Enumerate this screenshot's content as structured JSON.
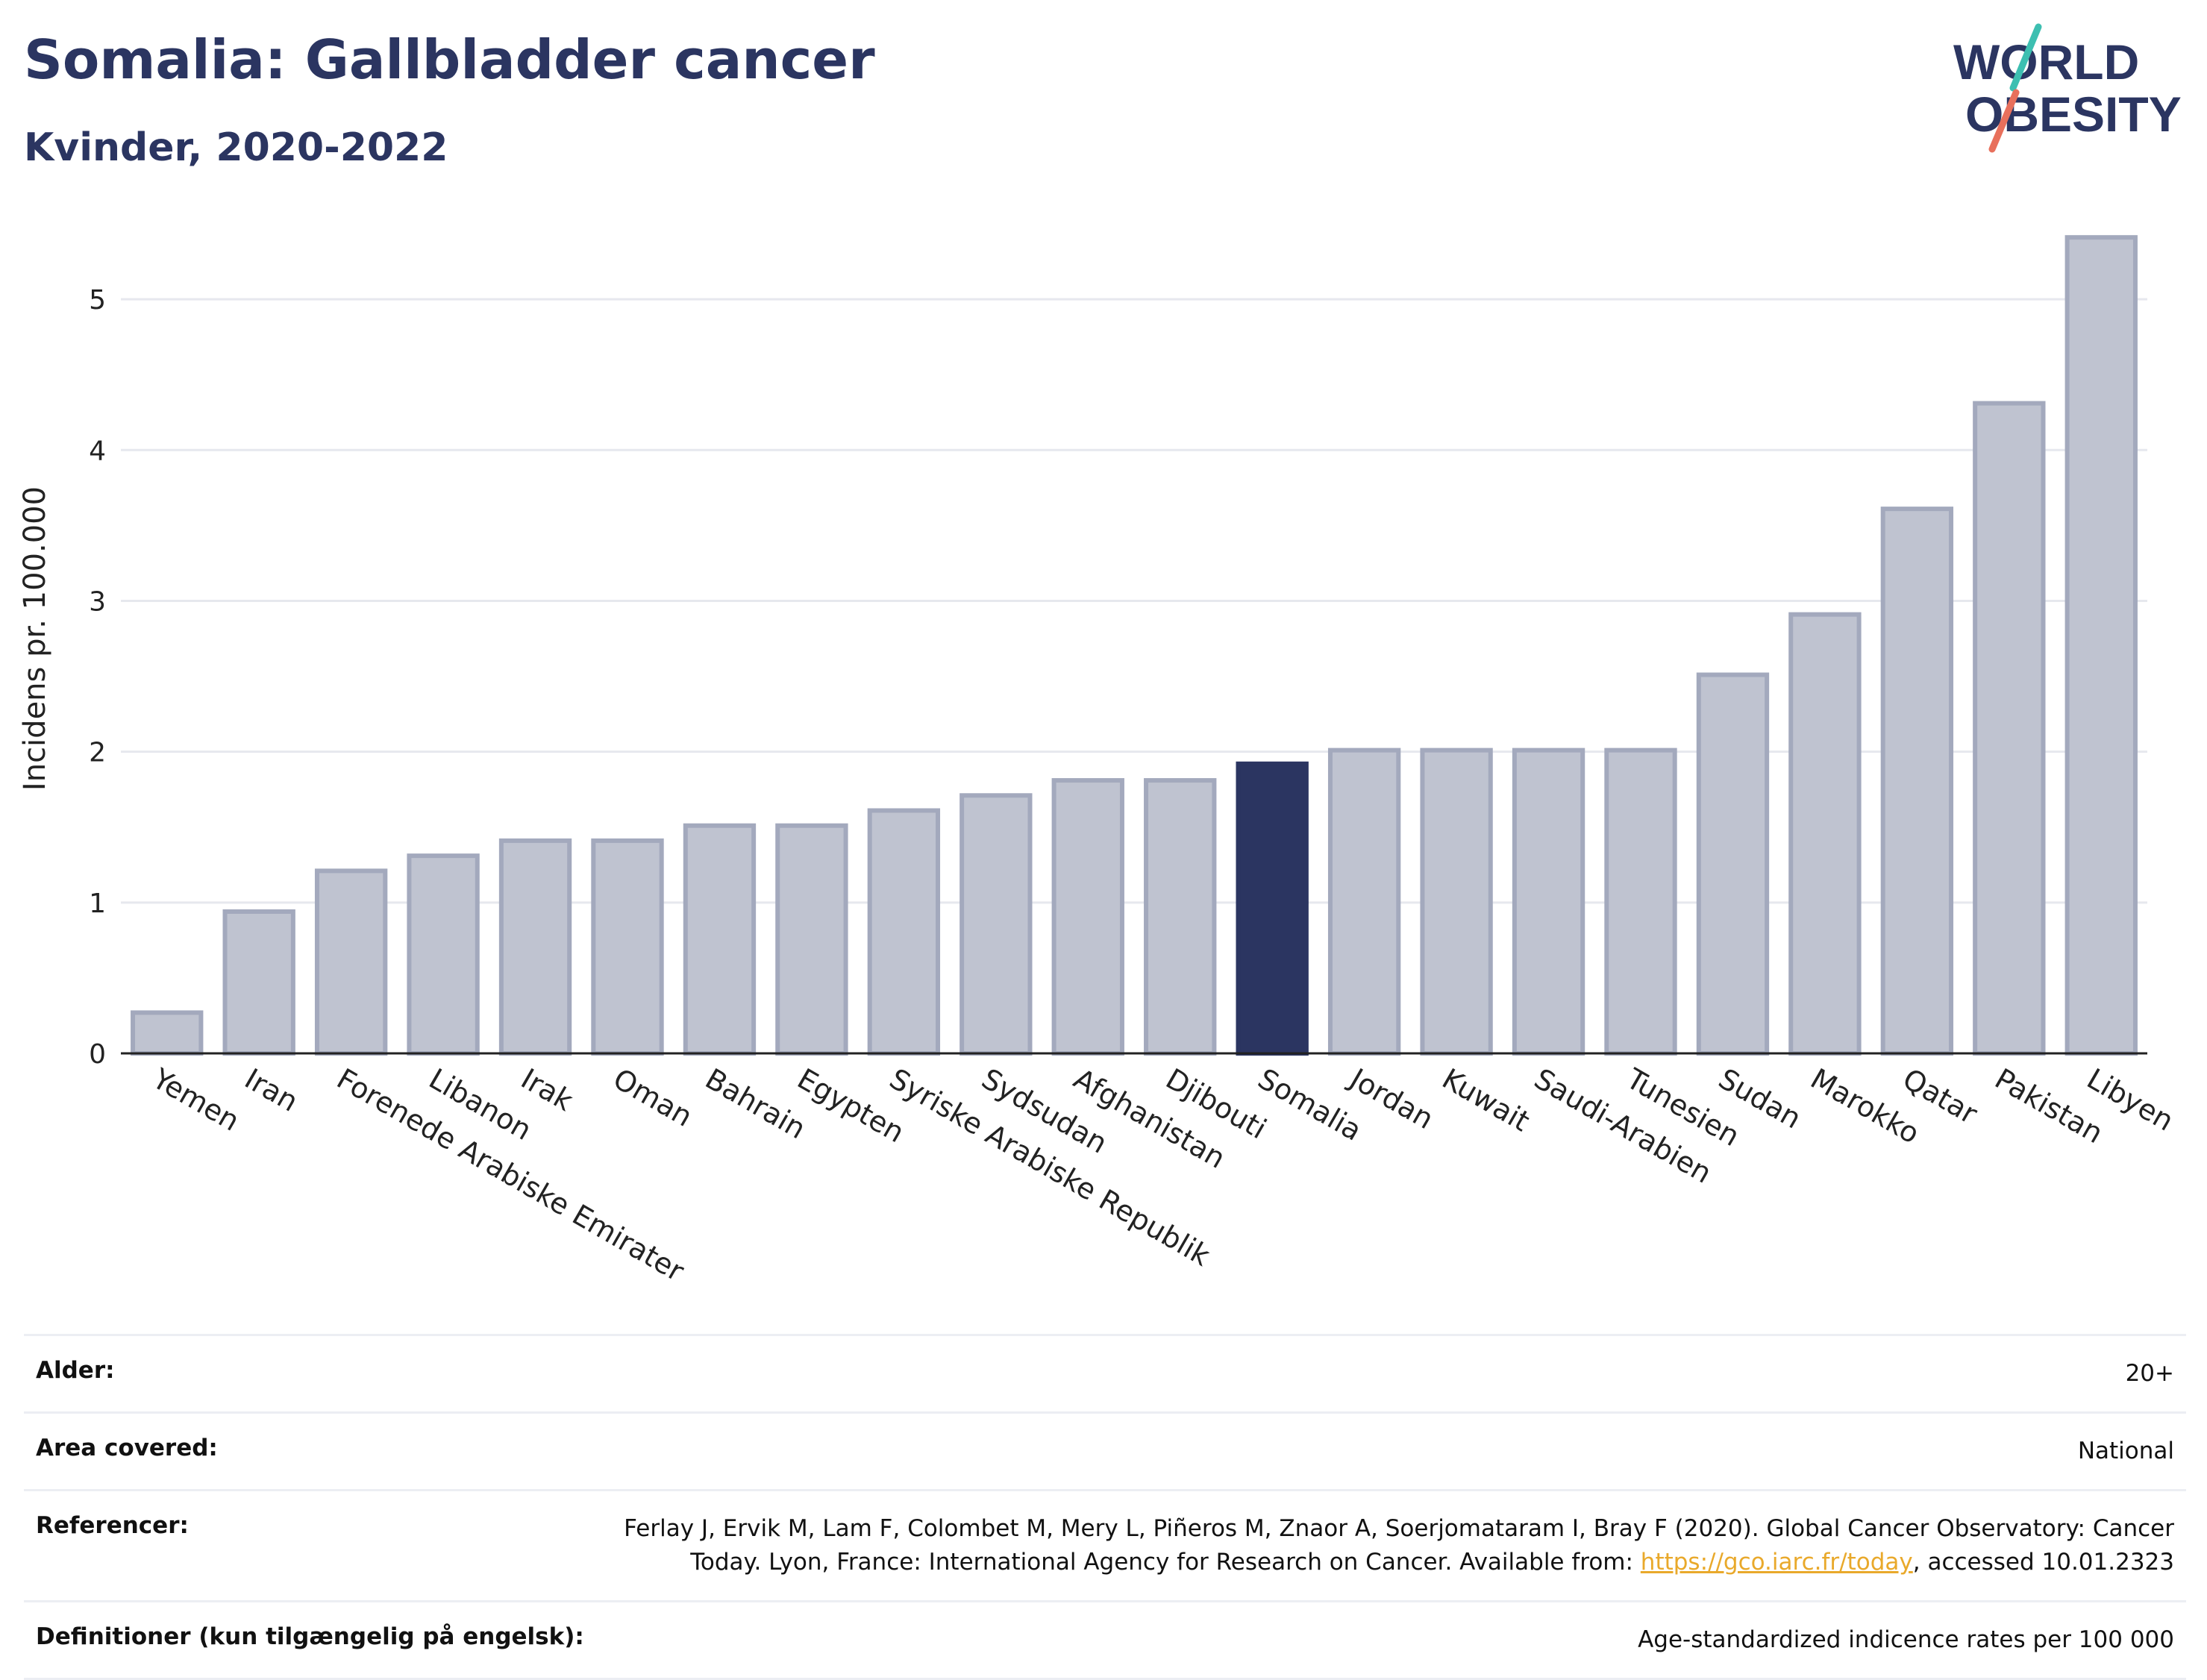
{
  "title": "Somalia: Gallbladder cancer",
  "subtitle": "Kvinder, 2020-2022",
  "logo": {
    "line1": "WORLD",
    "line2": "OBESITY"
  },
  "colors": {
    "highlight": "#2b3561",
    "bar_fill": "#bfc3d0",
    "bar_stroke": "#a3a9bd",
    "logo_navy": "#2b3561",
    "logo_teal": "#3dbfb1",
    "logo_coral": "#e8705c",
    "link": "#e9a92b"
  },
  "chart_data": {
    "type": "bar",
    "title": "Somalia: Gallbladder cancer",
    "ylabel": "Incidens pr. 100.000",
    "xlabel": "",
    "ylim": [
      0,
      5.5
    ],
    "yticks": [
      0,
      1,
      2,
      3,
      4,
      5
    ],
    "grid": true,
    "highlight": "Somalia",
    "categories": [
      "Yemen",
      "Iran",
      "Forenede Arabiske Emirater",
      "Libanon",
      "Irak",
      "Oman",
      "Bahrain",
      "Egypten",
      "Syriske Arabiske Republik",
      "Sydsudan",
      "Afghanistan",
      "Djibouti",
      "Somalia",
      "Jordan",
      "Kuwait",
      "Saudi-Arabien",
      "Tunesien",
      "Sudan",
      "Marokko",
      "Qatar",
      "Pakistan",
      "Libyen"
    ],
    "values": [
      0.27,
      0.94,
      1.21,
      1.31,
      1.41,
      1.41,
      1.51,
      1.51,
      1.61,
      1.71,
      1.81,
      1.81,
      1.92,
      2.01,
      2.01,
      2.01,
      2.01,
      2.51,
      2.91,
      3.61,
      4.31,
      5.41
    ]
  },
  "info": [
    {
      "label": "Alder:",
      "value": "20+"
    },
    {
      "label": "Area covered:",
      "value": "National"
    },
    {
      "label": "Referencer:",
      "value_before": "Ferlay J, Ervik M, Lam F, Colombet M, Mery L, Piñeros M, Znaor A, Soerjomataram I, Bray F (2020). Global Cancer Observatory: Cancer Today. Lyon, France: International Agency for Research on Cancer. Available from: ",
      "link": "https://gco.iarc.fr/today",
      "value_after": ", accessed 10.01.2323"
    },
    {
      "label": "Definitioner (kun tilgængelig på engelsk):",
      "value": "Age-standardized indicence rates per 100 000"
    }
  ]
}
